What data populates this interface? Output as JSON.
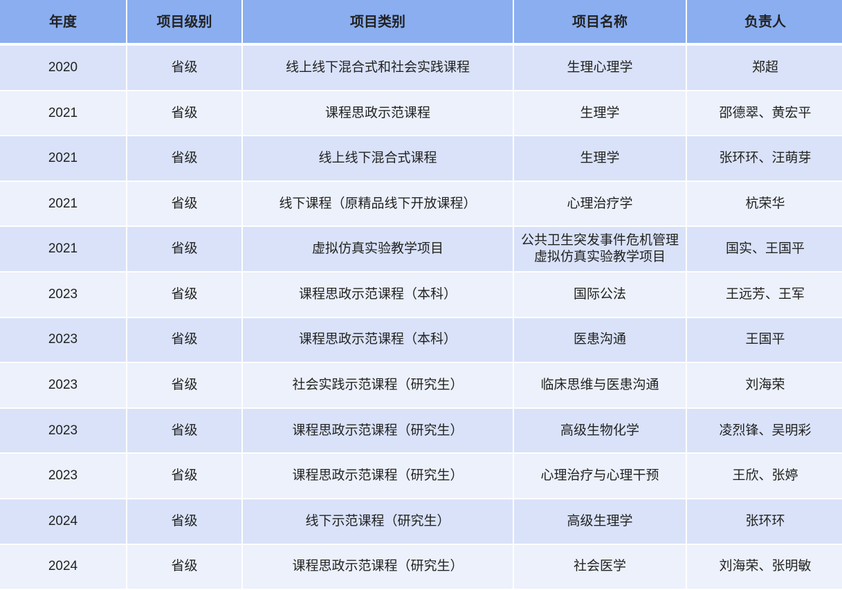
{
  "colors": {
    "header": "#8aaef0",
    "row_odd": "#d9e2f8",
    "row_even": "#ecf1fb"
  },
  "headers": [
    "年度",
    "项目级别",
    "项目类别",
    "项目名称",
    "负责人"
  ],
  "rows": [
    [
      "2020",
      "省级",
      "线上线下混合式和社会实践课程",
      "生理心理学",
      "郑超"
    ],
    [
      "2021",
      "省级",
      "课程思政示范课程",
      "生理学",
      "邵德翠、黄宏平"
    ],
    [
      "2021",
      "省级",
      "线上线下混合式课程",
      "生理学",
      "张环环、汪萌芽"
    ],
    [
      "2021",
      "省级",
      "线下课程（原精品线下开放课程）",
      "心理治疗学",
      "杭荣华"
    ],
    [
      "2021",
      "省级",
      "虚拟仿真实验教学项目",
      "公共卫生突发事件危机管理虚拟仿真实验教学项目",
      "国实、王国平"
    ],
    [
      "2023",
      "省级",
      "课程思政示范课程（本科）",
      "国际公法",
      "王远芳、王军"
    ],
    [
      "2023",
      "省级",
      "课程思政示范课程（本科）",
      "医患沟通",
      "王国平"
    ],
    [
      "2023",
      "省级",
      "社会实践示范课程（研究生）",
      "临床思维与医患沟通",
      "刘海荣"
    ],
    [
      "2023",
      "省级",
      "课程思政示范课程（研究生）",
      "高级生物化学",
      "凌烈锋、吴明彩"
    ],
    [
      "2023",
      "省级",
      "课程思政示范课程（研究生）",
      "心理治疗与心理干预",
      "王欣、张婷"
    ],
    [
      "2024",
      "省级",
      "线下示范课程（研究生）",
      "高级生理学",
      "张环环"
    ],
    [
      "2024",
      "省级",
      "课程思政示范课程（研究生）",
      "社会医学",
      "刘海荣、张明敏"
    ]
  ]
}
